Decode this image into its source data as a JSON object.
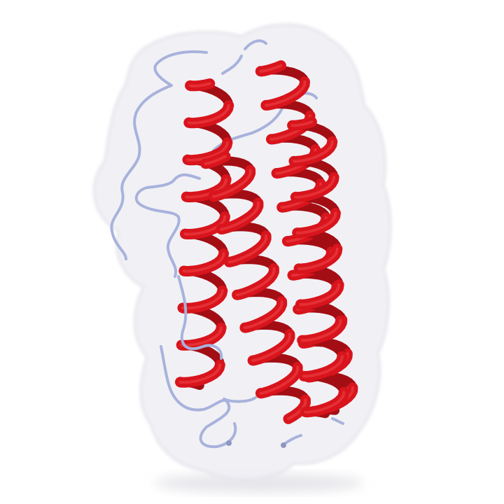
{
  "image": {
    "subject": "protein-structure-render",
    "style": "cartoon-with-transparent-surface",
    "background_color": "#ffffff"
  },
  "colors": {
    "surface_fill": "#eeeef3",
    "surface_stroke": "#e2e2ea",
    "helix_front": "#d8141c",
    "helix_back": "#a30e14",
    "helix_highlight": "#f0454a",
    "coil": "#a8b2dc",
    "coil_shadow": "#8e97c2",
    "shadow": "#d9d9df"
  },
  "structure": {
    "helix_count": 4,
    "coil_segments": 4
  }
}
